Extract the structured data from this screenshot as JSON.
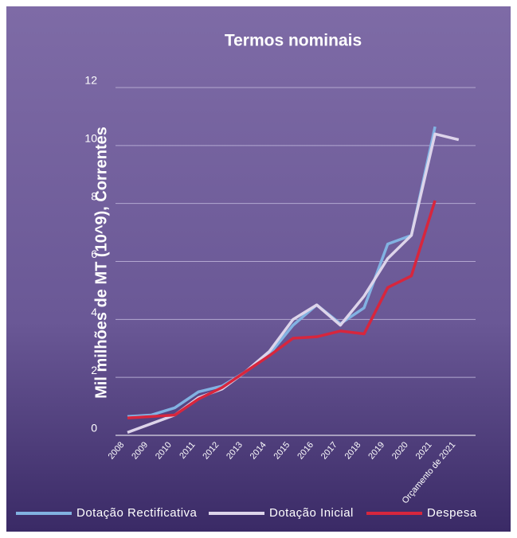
{
  "chart_data": {
    "type": "line",
    "title": "Termos nominais",
    "y_label": "Mil milhões de MT (10^9), Correntes",
    "categories": [
      "2008",
      "2009",
      "2010",
      "2011",
      "2012",
      "2013",
      "2014",
      "2015",
      "2016",
      "2017",
      "2018",
      "2019",
      "2020",
      "2021",
      "Orçamento de 2021"
    ],
    "series": [
      {
        "name": "Dotação Rectificativa",
        "color": "#82b2e2",
        "values": [
          0.65,
          0.7,
          0.95,
          1.5,
          1.7,
          2.2,
          2.8,
          3.8,
          4.5,
          3.85,
          4.4,
          6.6,
          6.9,
          10.65,
          null
        ]
      },
      {
        "name": "Dotação Inicial",
        "color": "#ddd4ea",
        "values": [
          0.1,
          0.4,
          0.7,
          1.3,
          1.6,
          2.2,
          2.9,
          4.0,
          4.5,
          3.8,
          4.8,
          6.1,
          6.9,
          10.4,
          10.2
        ]
      },
      {
        "name": "Despesa",
        "color": "#d7263d",
        "values": [
          0.6,
          0.65,
          0.7,
          1.25,
          1.65,
          2.2,
          2.75,
          3.35,
          3.4,
          3.6,
          3.5,
          5.1,
          5.5,
          8.1,
          null
        ]
      }
    ],
    "ylim": [
      0,
      12
    ],
    "yticks": [
      0,
      2,
      4,
      6,
      8,
      10,
      12
    ],
    "grid": true,
    "legend": "bottom"
  }
}
